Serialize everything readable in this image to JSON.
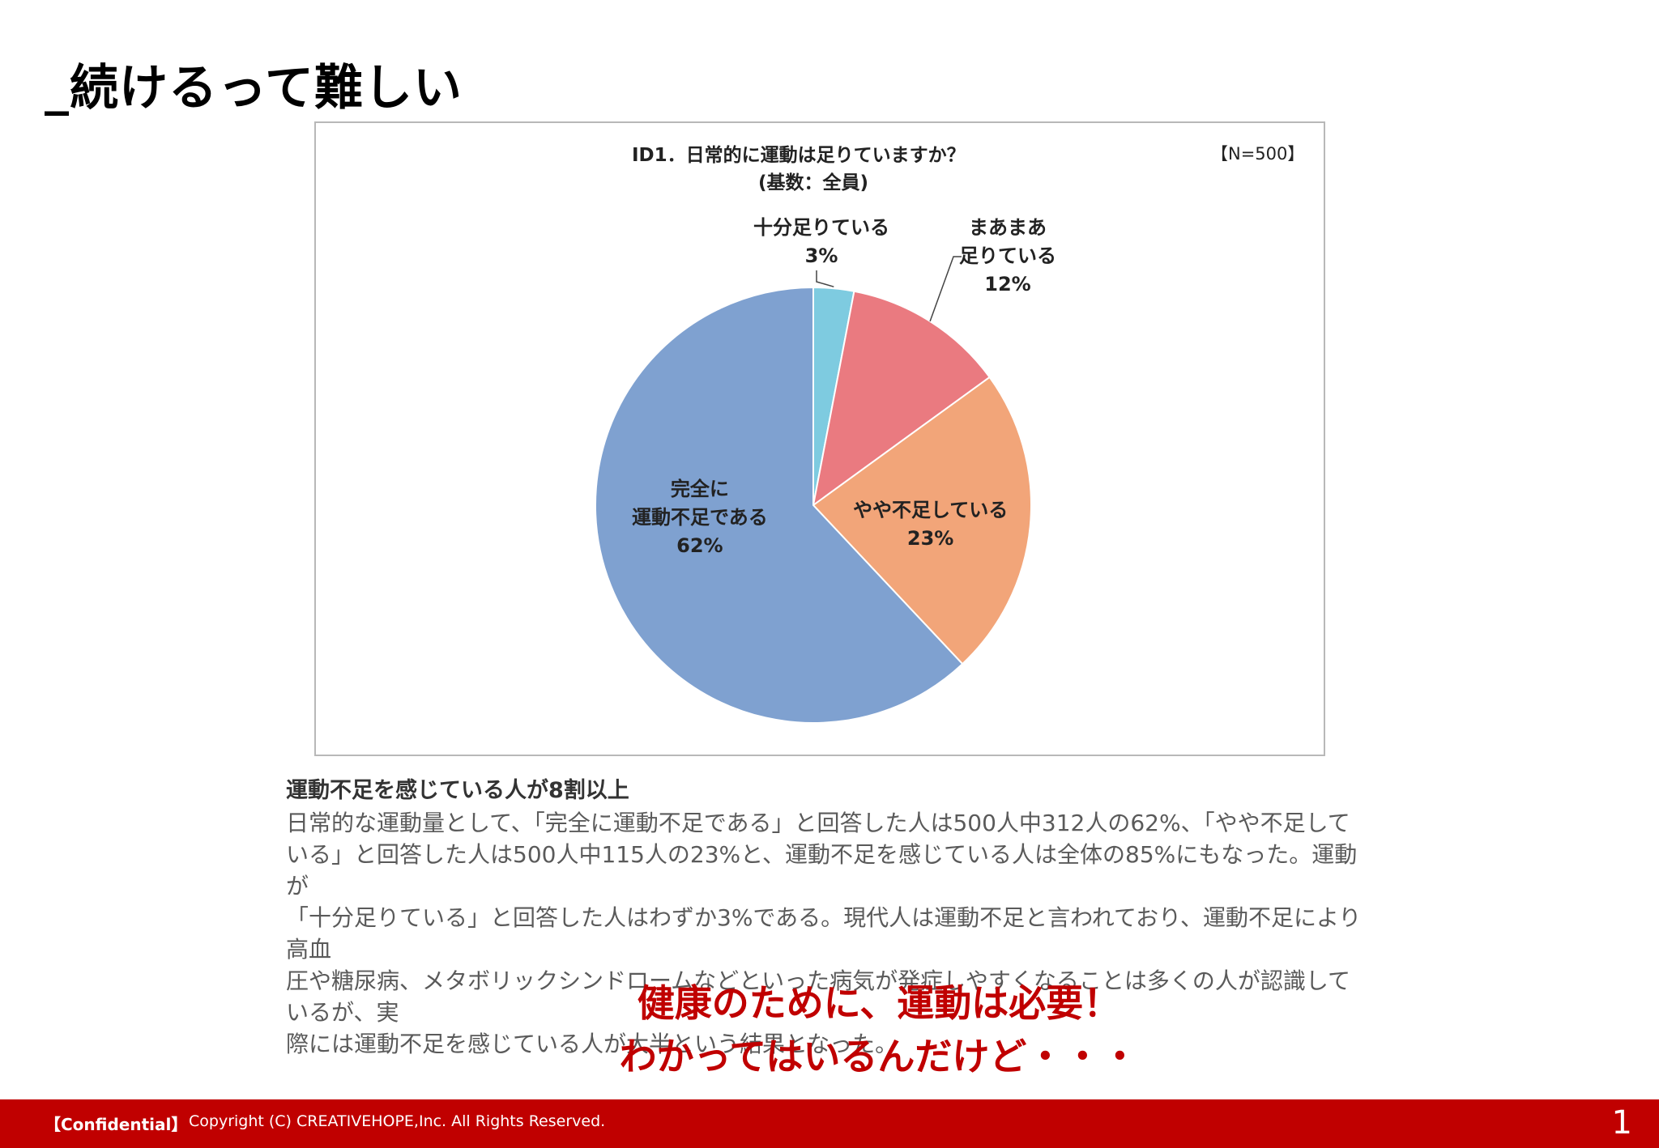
{
  "slide": {
    "title": "_続けるって難しい"
  },
  "chart_data": {
    "type": "pie",
    "title": "ID1．日常的に運動は足りていますか？",
    "subtitle": "(基数：全員)",
    "sample_size": "【N=500】",
    "categories": [
      "十分足りている",
      "まあまあ足りている",
      "やや不足している",
      "完全に運動不足である"
    ],
    "values": [
      3,
      12,
      23,
      62
    ],
    "display": [
      "3%",
      "12%",
      "23%",
      "62%"
    ],
    "label_lines": [
      [
        "十分足りている"
      ],
      [
        "まあまあ",
        "足りている"
      ],
      [
        "やや不足している"
      ],
      [
        "完全に",
        "運動不足である"
      ]
    ],
    "colors": [
      "#7ecbe0",
      "#ea7a80",
      "#f2a579",
      "#7fa1d0"
    ],
    "start": "12 o'clock",
    "direction": "clockwise",
    "legend": "none"
  },
  "summary": {
    "heading": "運動不足を感じている人が8割以上",
    "lines": [
      "日常的な運動量として、「完全に運動不足である」と回答した人は500人中312人の62%、「やや不足して",
      "いる」と回答した人は500人中115人の23%と、運動不足を感じている人は全体の85%にもなった。運動が",
      "「十分足りている」と回答した人はわずか3%である。現代人は運動不足と言われており、運動不足により高血",
      "圧や糖尿病、メタボリックシンドロームなどといった病気が発症しやすくなることは多くの人が認識しているが、実",
      "際には運動不足を感じている人が大半という結果となった。"
    ]
  },
  "callout": {
    "line1": "健康のために、運動は必要！",
    "line2": "わかってはいるんだけど・・・"
  },
  "footer": {
    "confidential": "【Confidential】",
    "copyright": "Copyright (C) CREATIVEHOPE,Inc. All Rights Reserved.",
    "page_number": "1"
  }
}
